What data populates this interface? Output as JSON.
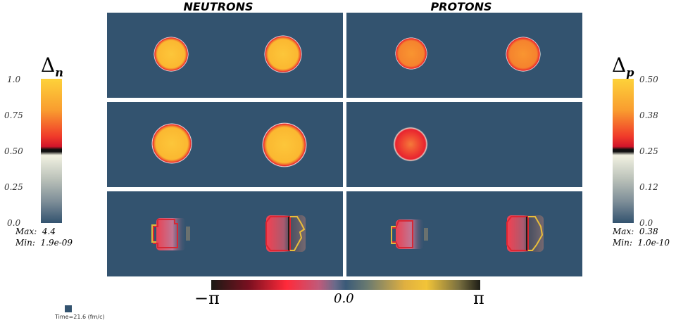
{
  "columns": {
    "left": "NEUTRONS",
    "right": "PROTONS"
  },
  "left_colorbar": {
    "symbol": "Δ",
    "subscript": "n",
    "ticks": [
      "1.0",
      "0.75",
      "0.50",
      "0.25",
      "0.0"
    ],
    "max_text": "Max:  4.4",
    "min_text": "Min:  1.9e-09"
  },
  "right_colorbar": {
    "symbol": "Δ",
    "subscript": "p",
    "ticks": [
      "0.50",
      "0.38",
      "0.25",
      "0.12",
      "0.0"
    ],
    "max_text": "Max:  0.38",
    "min_text": "Min:  1.0e-10"
  },
  "phase_bar": {
    "left_label": "−π",
    "mid_label": "0.0",
    "right_label": "π"
  },
  "time_label": "Time=21.6 (fm/c)",
  "colors": {
    "panel_background": "#33536f",
    "nucleus_orange": "#fbb831",
    "edge_red": "#e8232f",
    "edge_gold": "#f2c438"
  }
}
